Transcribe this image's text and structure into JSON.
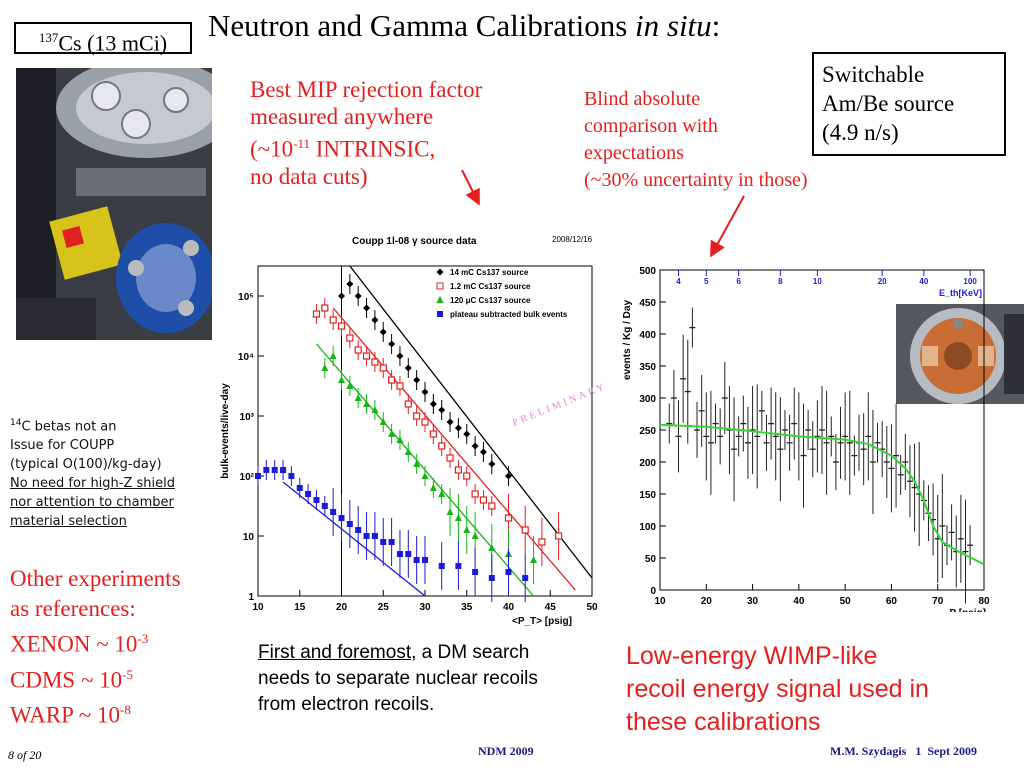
{
  "slide": {
    "title_main": "Neutron and Gamma Calibrations ",
    "title_italic": "in situ",
    "title_colon": ":",
    "cs_sup": "137",
    "cs_text": "Cs (13 mCi)",
    "mip": {
      "line1": "Best MIP rejection factor",
      "line2": "measured anywhere",
      "line3_a": "(~10",
      "line3_sup": "-11",
      "line3_b": " INTRINSIC,",
      "line4": "no data cuts)"
    },
    "blind": {
      "line1": "Blind absolute",
      "line2": "comparison with",
      "line3": "expectations",
      "line4": "(~30% uncertainty in those)"
    },
    "ambe": {
      "line1": "Switchable",
      "line2": "Am/Be source",
      "line3": "(4.9 n/s)"
    },
    "handwritten": {
      "line1_sup": "14",
      "line1": "C betas not an",
      "line2": "Issue for COUPP",
      "line3": "(typical O(100)/kg-day)",
      "line4": "No need for high-Z shield",
      "line5": "nor attention to chamber",
      "line6": "material selection"
    },
    "other": {
      "line1": "Other experiments",
      "line2": "as references:",
      "xenon": "XENON ~ 10",
      "xenon_sup": "-3",
      "cdms": "CDMS ~ 10",
      "cdms_sup": "-5",
      "warp": "WARP ~ 10",
      "warp_sup": "-8"
    },
    "first": {
      "underline": "First and foremost",
      "rest1": ", a DM search",
      "line2": "needs to separate nuclear recoils",
      "line3": "from electron recoils."
    },
    "lowe": {
      "line1": "Low-energy WIMP-like",
      "line2": "recoil energy signal used in",
      "line3": "these calibrations"
    },
    "footer": {
      "page": "8 of 20",
      "center": "NDM 2009",
      "right": "M.M. Szydagis   1  Sept 2009"
    },
    "colors": {
      "accent_red": "#e41f1f",
      "footer_blue": "#1a1a8a"
    }
  },
  "chart_data": [
    {
      "type": "scatter",
      "title": "Coupp 1l-08 γ source data",
      "date": "2008/12/16",
      "xlabel": "<P_T> [psig]",
      "ylabel": "bulk-events/live-day",
      "xlim": [
        10,
        50
      ],
      "ylim_log10": [
        0,
        5.5
      ],
      "log_y": true,
      "xticks": [
        "10",
        "15",
        "20",
        "25",
        "30",
        "35",
        "40",
        "45",
        "50"
      ],
      "yticks": [
        "1",
        "10",
        "10²",
        "10³",
        "10⁴",
        "10⁵"
      ],
      "watermark": "PRELIMINARY",
      "series": [
        {
          "name": "14 mC Cs137 source",
          "color": "#000000",
          "marker": "diamond",
          "points": [
            [
              20,
              5.0
            ],
            [
              21,
              5.2
            ],
            [
              22,
              5.0
            ],
            [
              23,
              4.8
            ],
            [
              24,
              4.6
            ],
            [
              25,
              4.4
            ],
            [
              26,
              4.2
            ],
            [
              27,
              4.0
            ],
            [
              28,
              3.8
            ],
            [
              29,
              3.6
            ],
            [
              30,
              3.4
            ],
            [
              31,
              3.2
            ],
            [
              32,
              3.1
            ],
            [
              33,
              2.9
            ],
            [
              34,
              2.8
            ],
            [
              35,
              2.7
            ],
            [
              36,
              2.5
            ],
            [
              37,
              2.4
            ],
            [
              38,
              2.2
            ],
            [
              40,
              2.0
            ]
          ],
          "fit": [
            [
              21,
              5.5
            ],
            [
              50,
              0.3
            ]
          ]
        },
        {
          "name": "1.2 mC Cs137 source",
          "color": "#e41f1f",
          "marker": "open-square",
          "points": [
            [
              17,
              4.7
            ],
            [
              18,
              4.8
            ],
            [
              19,
              4.6
            ],
            [
              20,
              4.5
            ],
            [
              21,
              4.3
            ],
            [
              22,
              4.1
            ],
            [
              23,
              4.0
            ],
            [
              24,
              3.9
            ],
            [
              25,
              3.8
            ],
            [
              26,
              3.6
            ],
            [
              27,
              3.5
            ],
            [
              28,
              3.2
            ],
            [
              29,
              3.0
            ],
            [
              30,
              2.9
            ],
            [
              31,
              2.7
            ],
            [
              32,
              2.5
            ],
            [
              33,
              2.3
            ],
            [
              34,
              2.1
            ],
            [
              35,
              2.0
            ],
            [
              36,
              1.7
            ],
            [
              37,
              1.6
            ],
            [
              38,
              1.5
            ],
            [
              40,
              1.3
            ],
            [
              42,
              1.1
            ],
            [
              44,
              0.9
            ],
            [
              46,
              1.0
            ]
          ],
          "fit": [
            [
              19,
              4.8
            ],
            [
              48,
              0.1
            ]
          ]
        },
        {
          "name": "120 μC Cs137 source",
          "color": "#16b416",
          "marker": "triangle",
          "points": [
            [
              18,
              3.8
            ],
            [
              19,
              4.0
            ],
            [
              20,
              3.6
            ],
            [
              21,
              3.5
            ],
            [
              22,
              3.3
            ],
            [
              23,
              3.2
            ],
            [
              24,
              3.1
            ],
            [
              25,
              2.9
            ],
            [
              26,
              2.7
            ],
            [
              27,
              2.6
            ],
            [
              28,
              2.4
            ],
            [
              29,
              2.2
            ],
            [
              30,
              2.0
            ],
            [
              31,
              1.8
            ],
            [
              32,
              1.7
            ],
            [
              33,
              1.4
            ],
            [
              34,
              1.3
            ],
            [
              35,
              1.1
            ],
            [
              36,
              1.0
            ],
            [
              38,
              0.8
            ],
            [
              40,
              0.7
            ],
            [
              43,
              0.6
            ]
          ],
          "fit": [
            [
              17,
              4.2
            ],
            [
              43,
              0.0
            ]
          ]
        },
        {
          "name": "plateau subtracted bulk events",
          "color": "#1a1adc",
          "marker": "square",
          "points": [
            [
              10,
              2.0
            ],
            [
              11,
              2.1
            ],
            [
              12,
              2.1
            ],
            [
              13,
              2.1
            ],
            [
              14,
              2.0
            ],
            [
              15,
              1.8
            ],
            [
              16,
              1.7
            ],
            [
              17,
              1.6
            ],
            [
              18,
              1.5
            ],
            [
              19,
              1.4
            ],
            [
              20,
              1.3
            ],
            [
              21,
              1.2
            ],
            [
              22,
              1.1
            ],
            [
              23,
              1.0
            ],
            [
              24,
              1.0
            ],
            [
              25,
              0.9
            ],
            [
              26,
              0.9
            ],
            [
              27,
              0.7
            ],
            [
              28,
              0.7
            ],
            [
              29,
              0.6
            ],
            [
              30,
              0.6
            ],
            [
              32,
              0.5
            ],
            [
              34,
              0.5
            ],
            [
              36,
              0.4
            ],
            [
              38,
              0.3
            ],
            [
              40,
              0.4
            ],
            [
              42,
              0.3
            ]
          ],
          "fit": [
            [
              13,
              1.9
            ],
            [
              30,
              0.0
            ]
          ]
        }
      ]
    },
    {
      "type": "scatter",
      "xlabel": "P [psig]",
      "ylabel": "events / Kg / Day",
      "xlim": [
        10,
        80
      ],
      "ylim": [
        0,
        500
      ],
      "xticks": [
        "10",
        "20",
        "30",
        "40",
        "50",
        "60",
        "70",
        "80"
      ],
      "yticks": [
        "0",
        "50",
        "100",
        "150",
        "200",
        "250",
        "300",
        "350",
        "400",
        "450",
        "500"
      ],
      "top_axis_label": "E_th[KeV]",
      "top_ticks": [
        "4",
        "5",
        "6",
        "8",
        "10",
        "20",
        "40",
        "100"
      ],
      "series": [
        {
          "name": "data",
          "color": "#000000",
          "points": [
            [
              12,
              260
            ],
            [
              13,
              300
            ],
            [
              14,
              240
            ],
            [
              15,
              330
            ],
            [
              16,
              310
            ],
            [
              17,
              410
            ],
            [
              18,
              250
            ],
            [
              19,
              280
            ],
            [
              20,
              240
            ],
            [
              21,
              230
            ],
            [
              22,
              260
            ],
            [
              23,
              240
            ],
            [
              24,
              300
            ],
            [
              25,
              250
            ],
            [
              26,
              220
            ],
            [
              27,
              240
            ],
            [
              28,
              260
            ],
            [
              29,
              230
            ],
            [
              30,
              250
            ],
            [
              31,
              240
            ],
            [
              32,
              280
            ],
            [
              33,
              230
            ],
            [
              34,
              260
            ],
            [
              35,
              240
            ],
            [
              36,
              220
            ],
            [
              37,
              250
            ],
            [
              38,
              230
            ],
            [
              39,
              260
            ],
            [
              40,
              240
            ],
            [
              41,
              210
            ],
            [
              42,
              250
            ],
            [
              43,
              220
            ],
            [
              44,
              240
            ],
            [
              45,
              250
            ],
            [
              46,
              230
            ],
            [
              47,
              240
            ],
            [
              48,
              200
            ],
            [
              49,
              230
            ],
            [
              50,
              240
            ],
            [
              51,
              230
            ],
            [
              52,
              210
            ],
            [
              53,
              230
            ],
            [
              54,
              220
            ],
            [
              55,
              240
            ],
            [
              56,
              200
            ],
            [
              57,
              230
            ],
            [
              58,
              220
            ],
            [
              59,
              200
            ],
            [
              60,
              190
            ],
            [
              61,
              210
            ],
            [
              62,
              180
            ],
            [
              63,
              200
            ],
            [
              64,
              170
            ],
            [
              65,
              160
            ],
            [
              66,
              150
            ],
            [
              67,
              140
            ],
            [
              68,
              120
            ],
            [
              69,
              110
            ],
            [
              70,
              80
            ],
            [
              71,
              100
            ],
            [
              72,
              70
            ],
            [
              73,
              90
            ],
            [
              74,
              60
            ],
            [
              75,
              80
            ],
            [
              76,
              60
            ],
            [
              77,
              70
            ]
          ],
          "fit_color": "#33d633",
          "fit": [
            [
              10,
              258
            ],
            [
              20,
              255
            ],
            [
              30,
              248
            ],
            [
              40,
              240
            ],
            [
              50,
              235
            ],
            [
              55,
              228
            ],
            [
              60,
              210
            ],
            [
              63,
              190
            ],
            [
              65,
              170
            ],
            [
              67,
              140
            ],
            [
              69,
              100
            ],
            [
              71,
              75
            ],
            [
              74,
              62
            ],
            [
              80,
              40
            ]
          ]
        }
      ]
    }
  ]
}
